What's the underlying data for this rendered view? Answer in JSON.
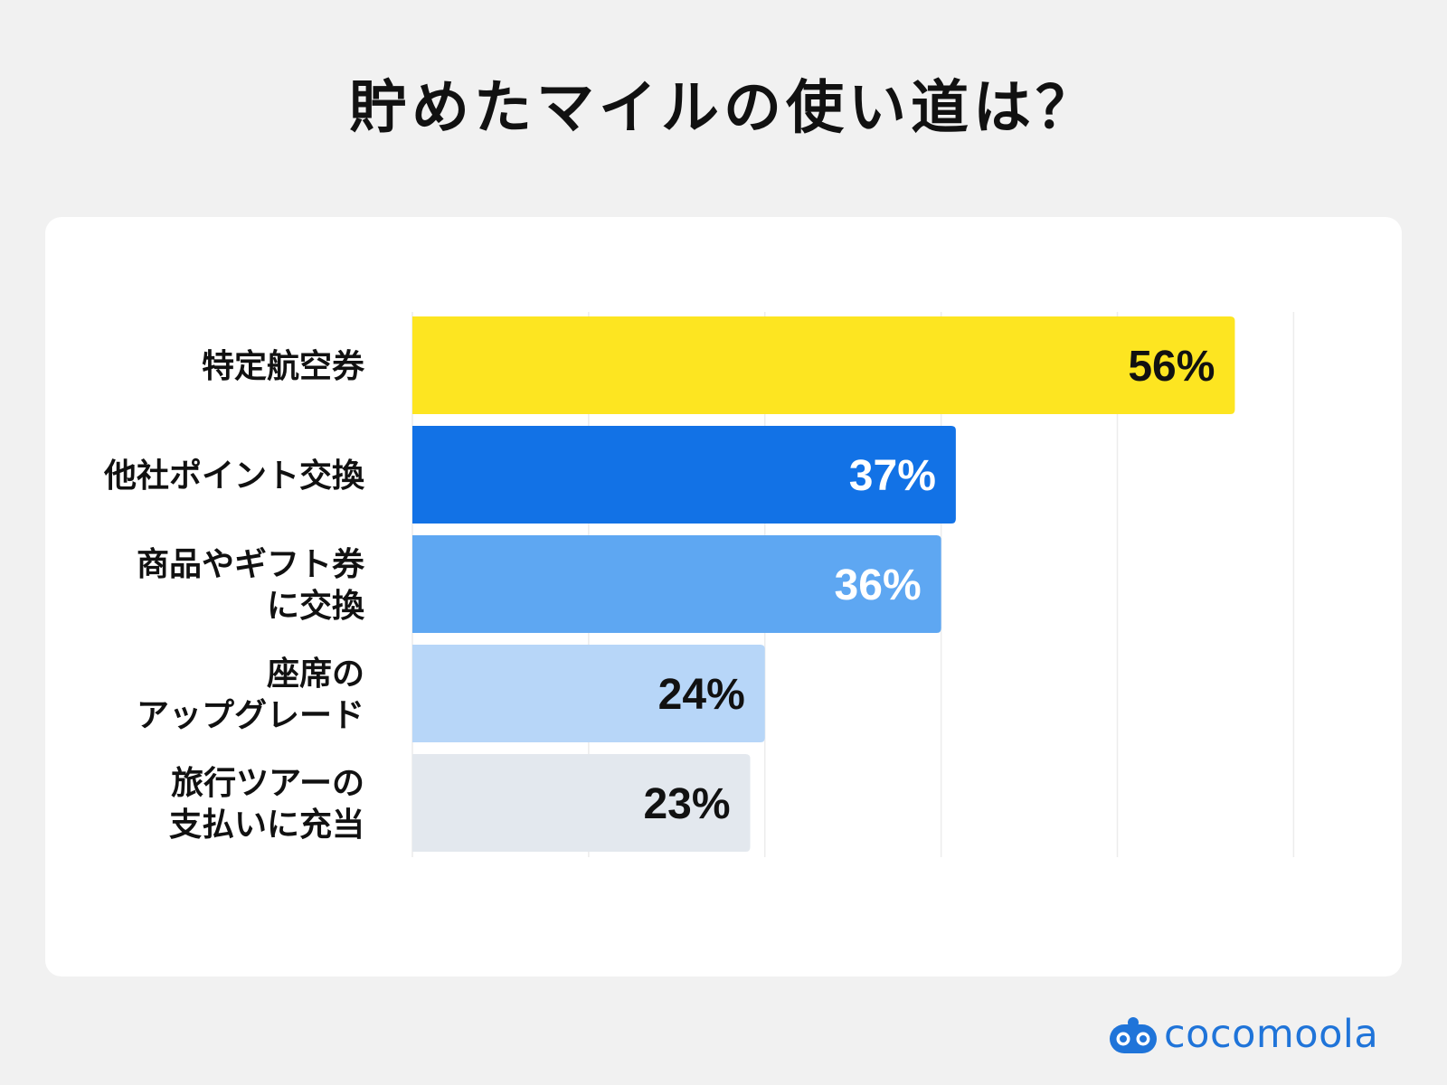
{
  "chart_data": {
    "type": "bar",
    "orientation": "horizontal",
    "title": "貯めたマイルの使い道は？",
    "categories": [
      [
        "特定航空券"
      ],
      [
        "他社ポイント交換"
      ],
      [
        "商品やギフト券",
        "に交換"
      ],
      [
        "座席の",
        "アップグレード"
      ],
      [
        "旅行ツアーの",
        "支払いに充当"
      ]
    ],
    "values": [
      56,
      37,
      36,
      24,
      23
    ],
    "value_labels": [
      "56%",
      "37%",
      "36%",
      "24%",
      "23%"
    ],
    "bar_colors": [
      "#fde521",
      "#1272e6",
      "#5ea7f2",
      "#b7d6f8",
      "#e3e8ee"
    ],
    "label_colors": [
      "#111111",
      "#ffffff",
      "#ffffff",
      "#111111",
      "#111111"
    ],
    "xlim": [
      0,
      60
    ],
    "grid": true,
    "legend": "none"
  },
  "brand": {
    "name": "cocomoola",
    "color": "#1f74d9",
    "icon": "cocomoola-logo-icon"
  }
}
